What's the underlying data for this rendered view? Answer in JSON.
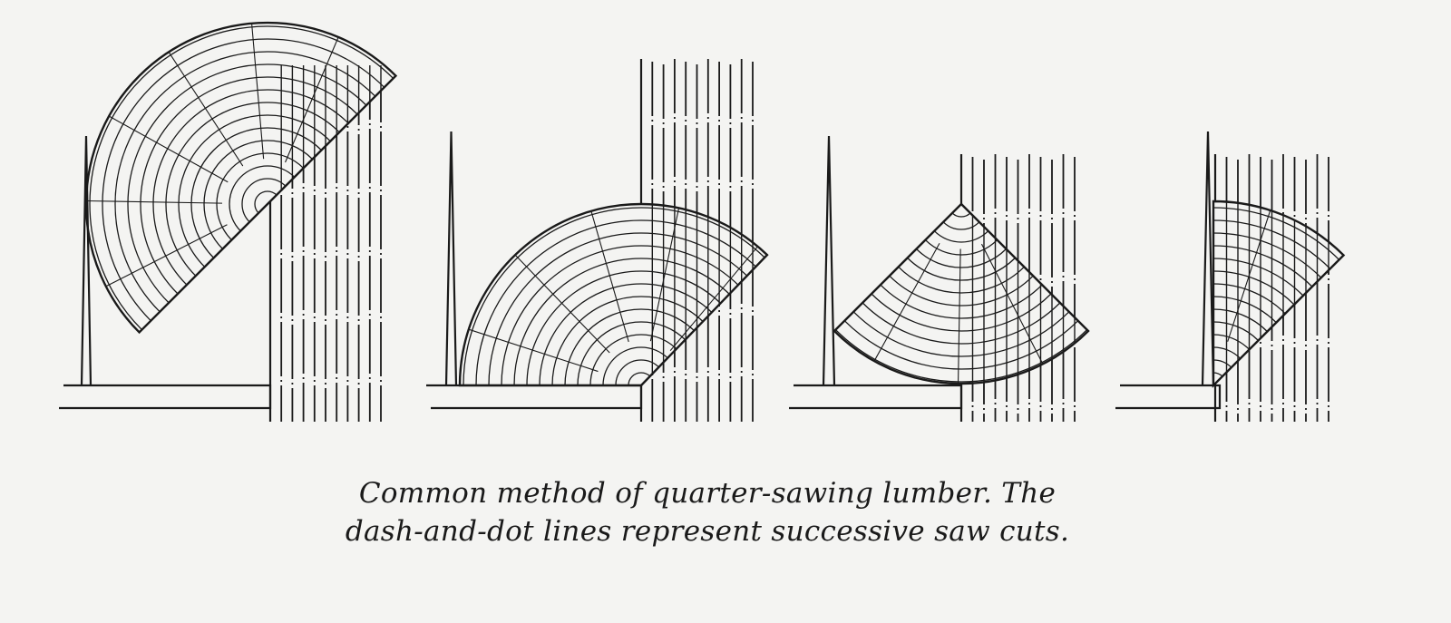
{
  "caption": {
    "line1": "Common method of quarter-sawing lumber. The",
    "line2": "dash-and-dot lines represent successive saw cuts."
  },
  "colors": {
    "ink": "#1a1a1a",
    "paper": "#f4f4f2"
  },
  "figures": [
    {
      "name": "quarter-log-stage-1"
    },
    {
      "name": "quarter-log-stage-2"
    },
    {
      "name": "quarter-log-stage-3"
    },
    {
      "name": "quarter-log-stage-4"
    }
  ]
}
